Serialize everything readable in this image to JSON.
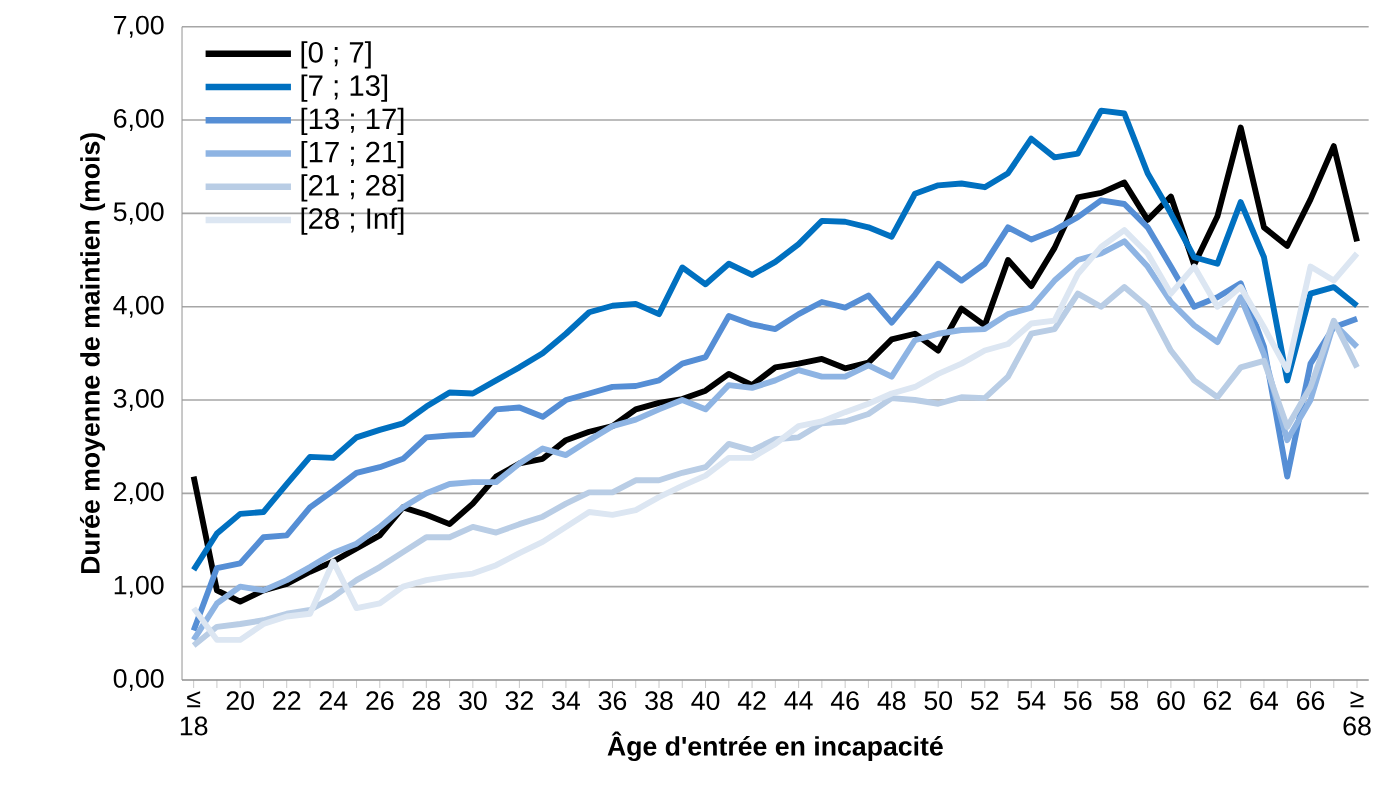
{
  "chart_data": {
    "type": "line",
    "xlabel": "Âge d'entrée en incapacité",
    "ylabel": "Durée moyenne de maintien (mois)",
    "categories": [
      "≤ 18",
      null,
      "20",
      null,
      "22",
      null,
      "24",
      null,
      "26",
      null,
      "28",
      null,
      "30",
      null,
      "32",
      null,
      "34",
      null,
      "36",
      null,
      "38",
      null,
      "40",
      null,
      "42",
      null,
      "44",
      null,
      "46",
      null,
      "48",
      null,
      "50",
      null,
      "52",
      null,
      "54",
      null,
      "56",
      null,
      "58",
      null,
      "60",
      null,
      "62",
      null,
      "64",
      null,
      "66",
      null,
      "≥ 68"
    ],
    "ylim": [
      0,
      7
    ],
    "yticks": [
      {
        "value": 0,
        "label": "0,00"
      },
      {
        "value": 1,
        "label": "1,00"
      },
      {
        "value": 2,
        "label": "2,00"
      },
      {
        "value": 3,
        "label": "3,00"
      },
      {
        "value": 4,
        "label": "4,00"
      },
      {
        "value": 5,
        "label": "5,00"
      },
      {
        "value": 6,
        "label": "6,00"
      },
      {
        "value": 7,
        "label": "7,00"
      }
    ],
    "grid": "y",
    "legend": "top left",
    "marker": "none",
    "line_style": "solid",
    "series": [
      {
        "name": "[0 ; 7]",
        "color": "#000000",
        "values": [
          2.18,
          0.96,
          0.84,
          0.96,
          1.03,
          1.16,
          1.27,
          1.41,
          1.55,
          1.85,
          1.77,
          1.67,
          1.89,
          2.18,
          2.32,
          2.37,
          2.57,
          2.66,
          2.72,
          2.9,
          2.97,
          3.01,
          3.1,
          3.28,
          3.16,
          3.35,
          3.39,
          3.44,
          3.34,
          3.4,
          3.65,
          3.71,
          3.53,
          3.98,
          3.8,
          4.5,
          4.22,
          4.63,
          5.17,
          5.22,
          5.33,
          4.93,
          5.18,
          4.45,
          4.97,
          5.92,
          4.85,
          4.65,
          5.15,
          5.72,
          4.7
        ]
      },
      {
        "name": "[7 ; 13]",
        "color": "#0070c0",
        "values": [
          1.18,
          1.57,
          1.78,
          1.8,
          2.1,
          2.39,
          2.38,
          2.6,
          2.68,
          2.75,
          2.93,
          3.08,
          3.07,
          3.21,
          3.35,
          3.5,
          3.71,
          3.94,
          4.01,
          4.03,
          3.92,
          4.42,
          4.24,
          4.46,
          4.34,
          4.48,
          4.67,
          4.92,
          4.91,
          4.85,
          4.75,
          5.21,
          5.3,
          5.32,
          5.28,
          5.43,
          5.8,
          5.6,
          5.64,
          6.1,
          6.07,
          5.43,
          5.0,
          4.53,
          4.46,
          5.12,
          4.53,
          3.21,
          4.14,
          4.21,
          4.01
        ]
      },
      {
        "name": "[13 ; 17]",
        "color": "#558ed5",
        "values": [
          0.53,
          1.2,
          1.25,
          1.53,
          1.55,
          1.85,
          2.03,
          2.22,
          2.28,
          2.37,
          2.6,
          2.62,
          2.63,
          2.9,
          2.92,
          2.82,
          3.0,
          3.07,
          3.14,
          3.15,
          3.21,
          3.39,
          3.46,
          3.9,
          3.81,
          3.76,
          3.92,
          4.05,
          3.99,
          4.12,
          3.83,
          4.13,
          4.46,
          4.28,
          4.46,
          4.85,
          4.72,
          4.82,
          4.96,
          5.14,
          5.1,
          4.85,
          4.43,
          4.0,
          4.1,
          4.25,
          3.57,
          2.18,
          3.39,
          3.78,
          3.87
        ]
      },
      {
        "name": "[17 ; 21]",
        "color": "#8eb4e3",
        "values": [
          0.43,
          0.82,
          1.0,
          0.96,
          1.07,
          1.21,
          1.36,
          1.46,
          1.64,
          1.85,
          2.0,
          2.1,
          2.12,
          2.12,
          2.32,
          2.48,
          2.41,
          2.57,
          2.72,
          2.79,
          2.9,
          3.0,
          2.9,
          3.16,
          3.13,
          3.21,
          3.32,
          3.25,
          3.25,
          3.37,
          3.25,
          3.64,
          3.71,
          3.75,
          3.76,
          3.92,
          3.99,
          4.28,
          4.5,
          4.57,
          4.7,
          4.43,
          4.05,
          3.8,
          3.62,
          4.1,
          3.49,
          2.57,
          3.0,
          3.82,
          3.57
        ]
      },
      {
        "name": "[21 ; 28]",
        "color": "#b9cde5",
        "values": [
          0.37,
          0.57,
          0.6,
          0.64,
          0.71,
          0.75,
          0.89,
          1.07,
          1.21,
          1.37,
          1.53,
          1.53,
          1.64,
          1.58,
          1.67,
          1.75,
          1.89,
          2.01,
          2.01,
          2.14,
          2.14,
          2.22,
          2.28,
          2.53,
          2.46,
          2.58,
          2.6,
          2.75,
          2.77,
          2.85,
          3.02,
          3.0,
          2.96,
          3.03,
          3.02,
          3.25,
          3.71,
          3.76,
          4.14,
          4.0,
          4.21,
          4.0,
          3.53,
          3.21,
          3.03,
          3.35,
          3.42,
          2.71,
          3.14,
          3.85,
          3.35
        ]
      },
      {
        "name": "[28 ; Inf]",
        "color": "#dce6f2",
        "values": [
          0.77,
          0.43,
          0.43,
          0.6,
          0.68,
          0.71,
          1.27,
          0.77,
          0.82,
          1.0,
          1.07,
          1.11,
          1.14,
          1.23,
          1.36,
          1.48,
          1.64,
          1.8,
          1.77,
          1.82,
          1.96,
          2.08,
          2.19,
          2.38,
          2.38,
          2.53,
          2.72,
          2.77,
          2.87,
          2.96,
          3.07,
          3.14,
          3.28,
          3.39,
          3.53,
          3.6,
          3.82,
          3.85,
          4.35,
          4.64,
          4.82,
          4.57,
          4.14,
          4.43,
          4.0,
          4.21,
          3.78,
          3.32,
          4.43,
          4.28,
          4.57
        ]
      }
    ]
  }
}
